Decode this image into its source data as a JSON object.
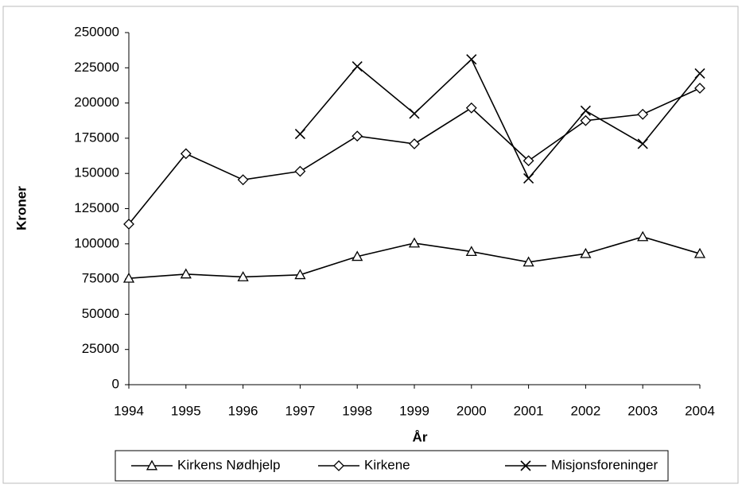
{
  "chart_data": {
    "type": "line",
    "x_label": "År",
    "y_label": "Kroner",
    "x": [
      1994,
      1995,
      1996,
      1997,
      1998,
      1999,
      2000,
      2001,
      2002,
      2003,
      2004
    ],
    "xlim": [
      1994,
      2004
    ],
    "xticks": [
      1994,
      1995,
      1996,
      1997,
      1998,
      1999,
      2000,
      2001,
      2002,
      2003,
      2004
    ],
    "ylim": [
      0,
      250000
    ],
    "yticks": [
      0,
      25000,
      50000,
      75000,
      100000,
      125000,
      150000,
      175000,
      200000,
      225000,
      250000
    ],
    "grid": false,
    "legend": "bottom",
    "series": [
      {
        "name": "Kirkens Nødhjelp",
        "color": "#000000",
        "marker": "triangle",
        "values": [
          75500,
          78500,
          76500,
          78000,
          91000,
          100500,
          94500,
          87000,
          93000,
          105000,
          93000
        ]
      },
      {
        "name": "Kirkene",
        "color": "#000000",
        "marker": "diamond",
        "values": [
          114000,
          164000,
          145500,
          151500,
          176500,
          171000,
          196500,
          159000,
          187500,
          192000,
          210500
        ]
      },
      {
        "name": "Misjonsforeninger",
        "color": "#000000",
        "marker": "x",
        "values": [
          null,
          null,
          null,
          178000,
          226000,
          192500,
          231000,
          146500,
          194500,
          171000,
          221000
        ]
      }
    ]
  }
}
